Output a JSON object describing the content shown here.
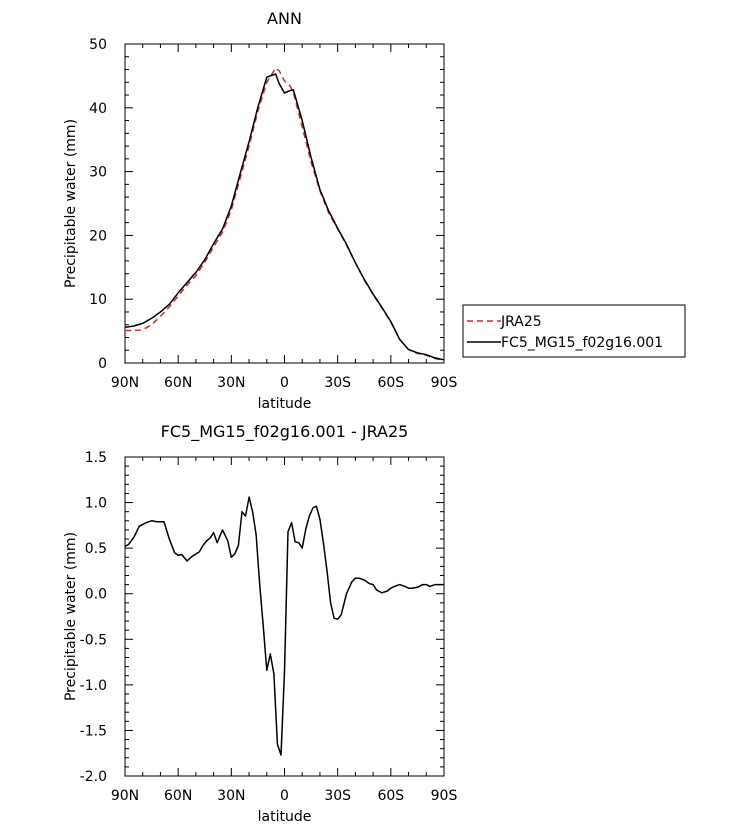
{
  "chart_data": [
    {
      "type": "line",
      "title": "ANN",
      "xlabel": "latitude",
      "ylabel": "Precipitable water (mm)",
      "xlim": [
        90,
        -90
      ],
      "ylim": [
        0,
        50
      ],
      "x_ticks": [
        90,
        60,
        30,
        0,
        -30,
        -60,
        -90
      ],
      "x_tick_labels": [
        "90N",
        "60N",
        "30N",
        "0",
        "30S",
        "60S",
        "90S"
      ],
      "y_ticks": [
        0,
        10,
        20,
        30,
        40,
        50
      ],
      "y_tick_labels": [
        "0",
        "10",
        "20",
        "30",
        "40",
        "50"
      ],
      "legend_position": "right",
      "series": [
        {
          "name": "JRA25",
          "color": "#d62728",
          "dash": "dashed",
          "x": [
            90,
            85,
            80,
            75,
            70,
            65,
            60,
            55,
            50,
            45,
            40,
            35,
            30,
            25,
            20,
            15,
            10,
            5,
            3,
            0,
            -3,
            -5,
            -10,
            -15,
            -20,
            -25,
            -30,
            -35,
            -40,
            -45,
            -50,
            -55,
            -60,
            -65,
            -70,
            -75,
            -80,
            -85,
            -90
          ],
          "y": [
            5.1,
            5.1,
            5.2,
            6.0,
            7.3,
            8.8,
            10.5,
            12.2,
            13.7,
            15.8,
            18.2,
            20.5,
            24.0,
            29.0,
            34.0,
            39.5,
            44.0,
            46.2,
            45.8,
            44.2,
            43.5,
            42.4,
            37.0,
            31.5,
            27.0,
            23.5,
            21.0,
            18.5,
            15.7,
            13.0,
            10.7,
            8.6,
            6.4,
            3.7,
            2.1,
            1.5,
            1.2,
            0.7,
            0.4
          ]
        },
        {
          "name": "FC5_MG15_f02g16.001",
          "color": "#000000",
          "dash": "solid",
          "x": [
            90,
            85,
            80,
            75,
            70,
            65,
            60,
            55,
            50,
            45,
            40,
            35,
            30,
            25,
            20,
            15,
            10,
            5,
            3,
            0,
            -3,
            -5,
            -10,
            -15,
            -20,
            -25,
            -30,
            -35,
            -40,
            -45,
            -50,
            -55,
            -60,
            -65,
            -70,
            -75,
            -80,
            -85,
            -90
          ],
          "y": [
            5.6,
            5.8,
            6.2,
            7.0,
            8.0,
            9.2,
            11.0,
            12.6,
            14.2,
            16.2,
            18.7,
            21.0,
            24.6,
            29.7,
            34.7,
            40.1,
            44.8,
            45.3,
            43.8,
            42.3,
            42.7,
            42.8,
            38.0,
            32.2,
            27.2,
            23.8,
            21.1,
            18.6,
            15.7,
            13.1,
            10.8,
            8.7,
            6.5,
            3.7,
            2.1,
            1.6,
            1.3,
            0.8,
            0.5
          ]
        }
      ]
    },
    {
      "type": "line",
      "title": "FC5_MG15_f02g16.001 - JRA25",
      "xlabel": "latitude",
      "ylabel": "Precipitable water (mm)",
      "xlim": [
        90,
        -90
      ],
      "ylim": [
        -2.0,
        1.5
      ],
      "x_ticks": [
        90,
        60,
        30,
        0,
        -30,
        -60,
        -90
      ],
      "x_tick_labels": [
        "90N",
        "60N",
        "30N",
        "0",
        "30S",
        "60S",
        "90S"
      ],
      "y_ticks": [
        -2.0,
        -1.5,
        -1.0,
        -0.5,
        0.0,
        0.5,
        1.0,
        1.5
      ],
      "y_tick_labels": [
        "-2.0",
        "-1.5",
        "-1.0",
        "-0.5",
        "0.0",
        "0.5",
        "1.0",
        "1.5"
      ],
      "series": [
        {
          "color": "#000000",
          "dash": "solid",
          "x": [
            90,
            88,
            85,
            82,
            78,
            75,
            72,
            68,
            65,
            62,
            60,
            58,
            55,
            52,
            48,
            46,
            44,
            42,
            40,
            38,
            35,
            32,
            30,
            28,
            26,
            24,
            22,
            20,
            18,
            16,
            14,
            12,
            10,
            8,
            6,
            4,
            2,
            0,
            -2,
            -4,
            -6,
            -8,
            -10,
            -12,
            -14,
            -16,
            -18,
            -20,
            -22,
            -24,
            -26,
            -28,
            -30,
            -32,
            -35,
            -38,
            -40,
            -42,
            -45,
            -48,
            -50,
            -52,
            -55,
            -58,
            -60,
            -62,
            -65,
            -68,
            -70,
            -72,
            -75,
            -78,
            -80,
            -82,
            -85,
            -88,
            -90
          ],
          "y": [
            0.52,
            0.54,
            0.62,
            0.74,
            0.78,
            0.8,
            0.79,
            0.79,
            0.6,
            0.45,
            0.42,
            0.43,
            0.36,
            0.41,
            0.46,
            0.53,
            0.58,
            0.61,
            0.67,
            0.56,
            0.7,
            0.58,
            0.4,
            0.44,
            0.53,
            0.9,
            0.85,
            1.06,
            0.9,
            0.65,
            0.1,
            -0.35,
            -0.84,
            -0.66,
            -0.88,
            -1.65,
            -1.77,
            -0.85,
            0.68,
            0.78,
            0.57,
            0.56,
            0.5,
            0.71,
            0.85,
            0.94,
            0.96,
            0.82,
            0.55,
            0.25,
            -0.1,
            -0.27,
            -0.28,
            -0.23,
            0.0,
            0.13,
            0.17,
            0.17,
            0.15,
            0.11,
            0.1,
            0.04,
            0.01,
            0.03,
            0.06,
            0.08,
            0.1,
            0.08,
            0.06,
            0.06,
            0.07,
            0.1,
            0.1,
            0.08,
            0.1,
            0.1,
            0.1
          ]
        }
      ]
    }
  ]
}
